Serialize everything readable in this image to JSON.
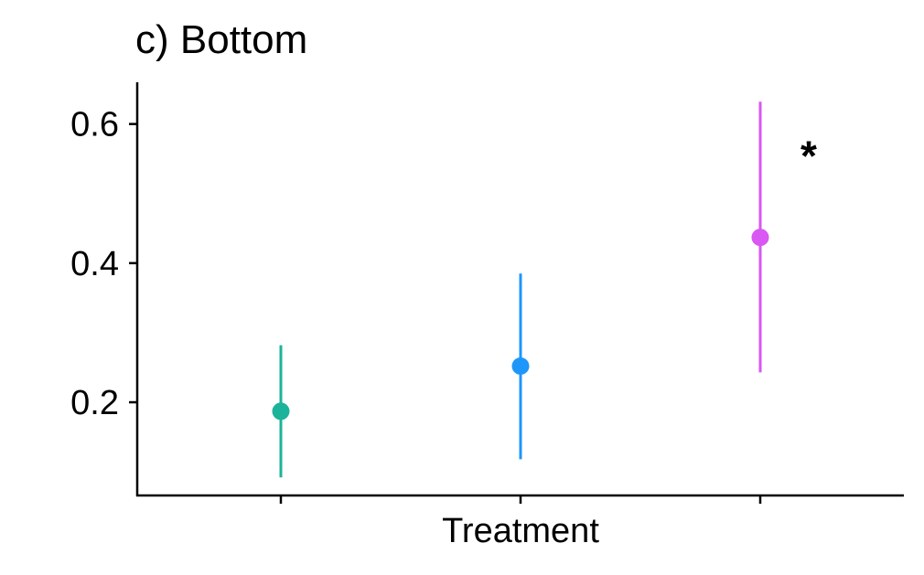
{
  "chart_data": {
    "type": "scatter",
    "title": "c) Bottom",
    "xlabel": "Treatment",
    "ylabel": "",
    "categories": [
      "",
      "",
      ""
    ],
    "ylim": [
      0.066,
      0.66
    ],
    "y_ticks": [
      {
        "value": 0.2,
        "label": "0.2"
      },
      {
        "value": 0.4,
        "label": "0.4"
      },
      {
        "value": 0.6,
        "label": "0.6"
      }
    ],
    "points": [
      {
        "index": 0,
        "value": 0.187,
        "lower": 0.092,
        "upper": 0.282,
        "color": "#1bb39a",
        "annotation": ""
      },
      {
        "index": 1,
        "value": 0.252,
        "lower": 0.118,
        "upper": 0.385,
        "color": "#1e96fa",
        "annotation": ""
      },
      {
        "index": 2,
        "value": 0.437,
        "lower": 0.243,
        "upper": 0.632,
        "color": "#d957f2",
        "annotation": "*"
      }
    ],
    "grid": false,
    "legend": "none"
  }
}
